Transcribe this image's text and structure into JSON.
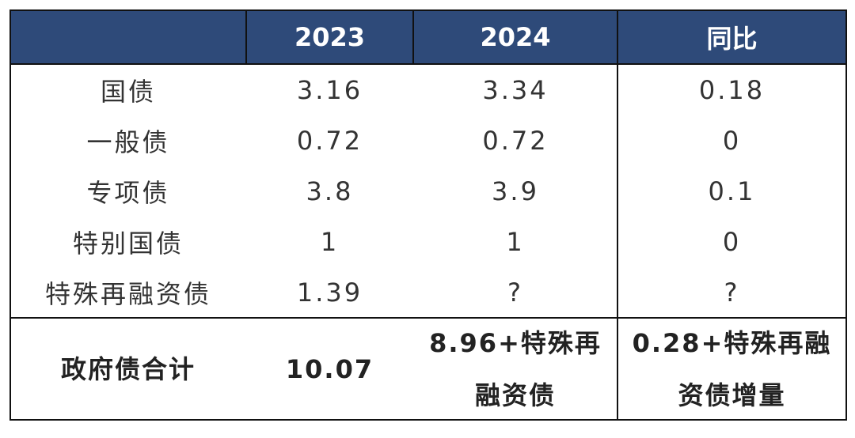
{
  "header": {
    "col1": "",
    "col2": "2023",
    "col3": "2024",
    "col4": "同比"
  },
  "rows": [
    {
      "label": "国债",
      "y2023": "3.16",
      "y2024": "3.34",
      "yoy": "0.18"
    },
    {
      "label": "一般债",
      "y2023": "0.72",
      "y2024": "0.72",
      "yoy": "0"
    },
    {
      "label": "专项债",
      "y2023": "3.8",
      "y2024": "3.9",
      "yoy": "0.1"
    },
    {
      "label": "特别国债",
      "y2023": "1",
      "y2024": "1",
      "yoy": "0"
    },
    {
      "label": "特殊再融资债",
      "y2023": "1.39",
      "y2024": "?",
      "yoy": "?"
    }
  ],
  "total": {
    "label": "政府债合计",
    "y2023": "10.07",
    "y2024_line1": "8.96+特殊再",
    "y2024_line2": "融资债",
    "yoy_line1": "0.28+特殊再融",
    "yoy_line2": "资债增量"
  },
  "colors": {
    "header_bg": "#2e4a79",
    "header_text": "#ffffff",
    "border": "#111111",
    "body_text": "#333333"
  }
}
